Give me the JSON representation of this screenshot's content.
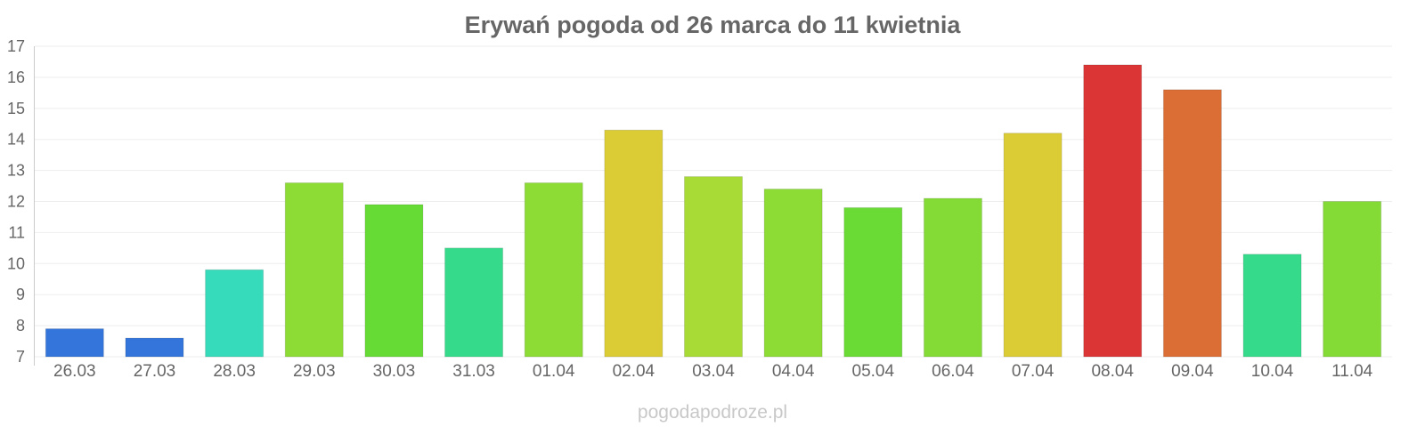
{
  "chart_data": {
    "type": "bar",
    "title": "Erywań pogoda od 26 marca do 11 kwietnia",
    "xlabel": "",
    "ylabel": "",
    "categories": [
      "26.03",
      "27.03",
      "28.03",
      "29.03",
      "30.03",
      "31.03",
      "01.04",
      "02.04",
      "03.04",
      "04.04",
      "05.04",
      "06.04",
      "07.04",
      "08.04",
      "09.04",
      "10.04",
      "11.04"
    ],
    "values": [
      7.9,
      7.6,
      9.8,
      12.6,
      11.9,
      10.5,
      12.6,
      14.3,
      12.8,
      12.4,
      11.8,
      12.1,
      14.2,
      16.4,
      15.6,
      10.3,
      12.0
    ],
    "colors": [
      "#3375db",
      "#3375db",
      "#35dbba",
      "#8ddb35",
      "#67db35",
      "#35db8b",
      "#8ddb35",
      "#dbcc35",
      "#a8db35",
      "#8ddb35",
      "#6adb35",
      "#84db35",
      "#dbcc35",
      "#db3535",
      "#db6e35",
      "#35db8b",
      "#84db35"
    ],
    "ylim": [
      7,
      17
    ],
    "yticks": [
      7,
      8,
      9,
      10,
      11,
      12,
      13,
      14,
      15,
      16,
      17
    ],
    "grid": true,
    "legend": "none"
  },
  "watermark": "pogodapodroze.pl"
}
